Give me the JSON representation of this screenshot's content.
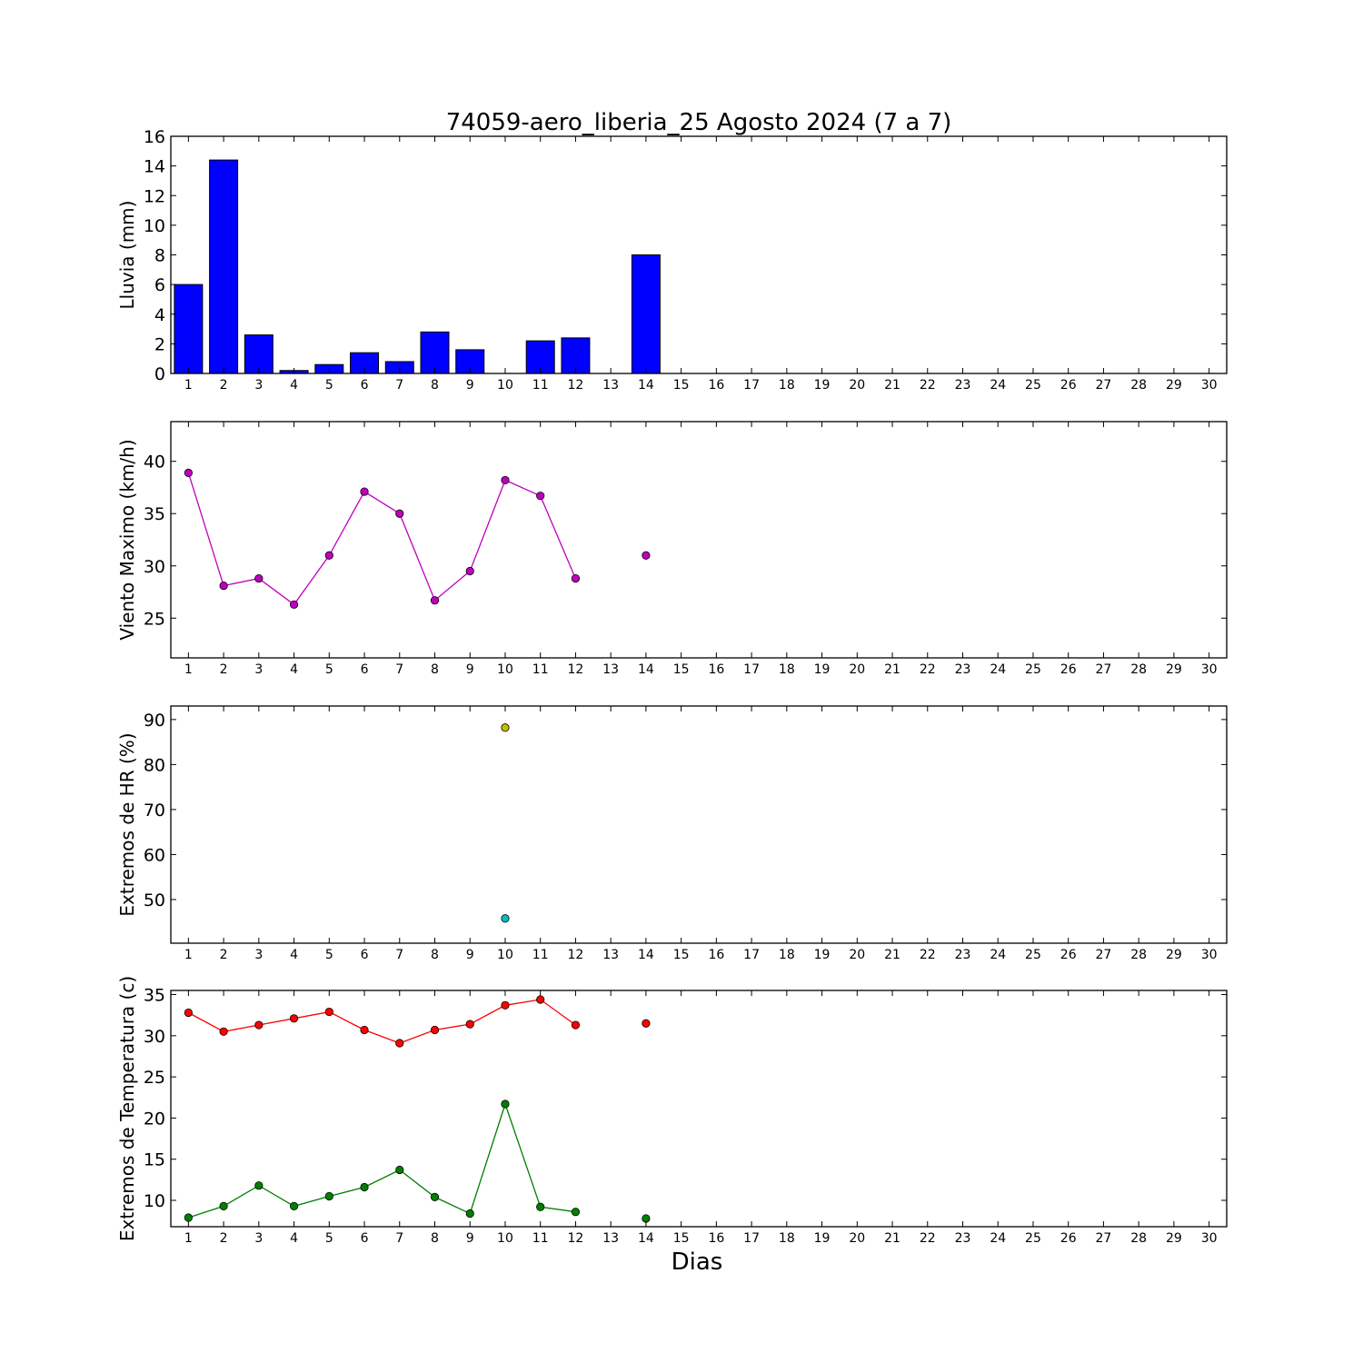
{
  "chart_data": [
    {
      "type": "bar",
      "title": "74059-aero_liberia_25 Agosto 2024  (7 a 7)",
      "ylabel": "Lluvia (mm)",
      "xlabel": "",
      "x": [
        1,
        2,
        3,
        4,
        5,
        6,
        7,
        8,
        9,
        10,
        11,
        12,
        13,
        14,
        15,
        16,
        17,
        18,
        19,
        20,
        21,
        22,
        23,
        24,
        25,
        26,
        27,
        28,
        29,
        30
      ],
      "xticks": [
        "1",
        "2",
        "3",
        "4",
        "5",
        "6",
        "7",
        "8",
        "9",
        "10",
        "11",
        "12",
        "13",
        "14",
        "15",
        "16",
        "17",
        "18",
        "19",
        "20",
        "21",
        "22",
        "23",
        "24",
        "25",
        "26",
        "27",
        "28",
        "29",
        "30"
      ],
      "xlim": [
        0.5,
        30.5
      ],
      "ylim": [
        0,
        16
      ],
      "yticks": [
        0,
        2,
        4,
        6,
        8,
        10,
        12,
        14,
        16
      ],
      "grid": false,
      "series": [
        {
          "color": "#0000ff",
          "values": [
            6.0,
            14.4,
            2.6,
            0.2,
            0.6,
            1.4,
            0.8,
            2.8,
            1.6,
            0.0,
            2.2,
            2.4,
            null,
            8.0,
            null,
            null,
            null,
            null,
            null,
            null,
            null,
            null,
            null,
            null,
            null,
            null,
            null,
            null,
            null,
            null
          ]
        }
      ]
    },
    {
      "type": "line",
      "title": "",
      "ylabel": "Viento Maximo (km/h)",
      "xlabel": "",
      "x": [
        1,
        2,
        3,
        4,
        5,
        6,
        7,
        8,
        9,
        10,
        11,
        12,
        13,
        14,
        15,
        16,
        17,
        18,
        19,
        20,
        21,
        22,
        23,
        24,
        25,
        26,
        27,
        28,
        29,
        30
      ],
      "xticks": [
        "1",
        "2",
        "3",
        "4",
        "5",
        "6",
        "7",
        "8",
        "9",
        "10",
        "11",
        "12",
        "13",
        "14",
        "15",
        "16",
        "17",
        "18",
        "19",
        "20",
        "21",
        "22",
        "23",
        "24",
        "25",
        "26",
        "27",
        "28",
        "29",
        "30"
      ],
      "xlim": [
        0.5,
        30.5
      ],
      "ylim": [
        21.2,
        43.8
      ],
      "yticks": [
        25,
        30,
        35,
        40
      ],
      "grid": false,
      "series": [
        {
          "color": "#bf00bf",
          "marker": "circle",
          "values": [
            38.9,
            28.1,
            28.8,
            26.3,
            31.0,
            37.1,
            35.0,
            26.7,
            29.5,
            38.2,
            36.7,
            28.8,
            null,
            31.0,
            null,
            null,
            null,
            null,
            null,
            null,
            null,
            null,
            null,
            null,
            null,
            null,
            null,
            null,
            null,
            null
          ]
        }
      ]
    },
    {
      "type": "scatter",
      "title": "",
      "ylabel": "Extremos de HR (%)",
      "xlabel": "",
      "x": [
        1,
        2,
        3,
        4,
        5,
        6,
        7,
        8,
        9,
        10,
        11,
        12,
        13,
        14,
        15,
        16,
        17,
        18,
        19,
        20,
        21,
        22,
        23,
        24,
        25,
        26,
        27,
        28,
        29,
        30
      ],
      "xticks": [
        "1",
        "2",
        "3",
        "4",
        "5",
        "6",
        "7",
        "8",
        "9",
        "10",
        "11",
        "12",
        "13",
        "14",
        "15",
        "16",
        "17",
        "18",
        "19",
        "20",
        "21",
        "22",
        "23",
        "24",
        "25",
        "26",
        "27",
        "28",
        "29",
        "30"
      ],
      "xlim": [
        0.5,
        30.5
      ],
      "ylim": [
        40.3,
        93.0
      ],
      "yticks": [
        50,
        60,
        70,
        80,
        90
      ],
      "grid": false,
      "series": [
        {
          "color": "#bfbf00",
          "marker": "circle",
          "values": [
            null,
            null,
            null,
            null,
            null,
            null,
            null,
            null,
            null,
            88.2,
            null,
            null,
            null,
            null,
            null,
            null,
            null,
            null,
            null,
            null,
            null,
            null,
            null,
            null,
            null,
            null,
            null,
            null,
            null,
            null
          ]
        },
        {
          "color": "#00bfbf",
          "marker": "circle",
          "values": [
            null,
            null,
            null,
            null,
            null,
            null,
            null,
            null,
            null,
            45.8,
            null,
            null,
            null,
            null,
            null,
            null,
            null,
            null,
            null,
            null,
            null,
            null,
            null,
            null,
            null,
            null,
            null,
            null,
            null,
            null
          ]
        }
      ]
    },
    {
      "type": "line",
      "title": "",
      "ylabel": "Extremos de Temperatura (c)",
      "xlabel": "Dias",
      "x": [
        1,
        2,
        3,
        4,
        5,
        6,
        7,
        8,
        9,
        10,
        11,
        12,
        13,
        14,
        15,
        16,
        17,
        18,
        19,
        20,
        21,
        22,
        23,
        24,
        25,
        26,
        27,
        28,
        29,
        30
      ],
      "xticks": [
        "1",
        "2",
        "3",
        "4",
        "5",
        "6",
        "7",
        "8",
        "9",
        "10",
        "11",
        "12",
        "13",
        "14",
        "15",
        "16",
        "17",
        "18",
        "19",
        "20",
        "21",
        "22",
        "23",
        "24",
        "25",
        "26",
        "27",
        "28",
        "29",
        "30"
      ],
      "xlim": [
        0.5,
        30.5
      ],
      "ylim": [
        6.8,
        35.5
      ],
      "yticks": [
        10,
        15,
        20,
        25,
        30,
        35
      ],
      "grid": false,
      "series": [
        {
          "color": "#ff0000",
          "marker": "circle",
          "values": [
            32.8,
            30.5,
            31.3,
            32.1,
            32.9,
            30.7,
            29.1,
            30.7,
            31.4,
            33.7,
            34.4,
            31.3,
            null,
            31.5,
            null,
            null,
            null,
            null,
            null,
            null,
            null,
            null,
            null,
            null,
            null,
            null,
            null,
            null,
            null,
            null
          ]
        },
        {
          "color": "#007f00",
          "marker": "circle",
          "values": [
            7.9,
            9.3,
            11.8,
            9.3,
            10.5,
            11.6,
            13.7,
            10.4,
            8.4,
            21.7,
            9.2,
            8.6,
            null,
            7.8,
            null,
            null,
            null,
            null,
            null,
            null,
            null,
            null,
            null,
            null,
            null,
            null,
            null,
            null,
            null,
            null
          ]
        }
      ]
    }
  ]
}
